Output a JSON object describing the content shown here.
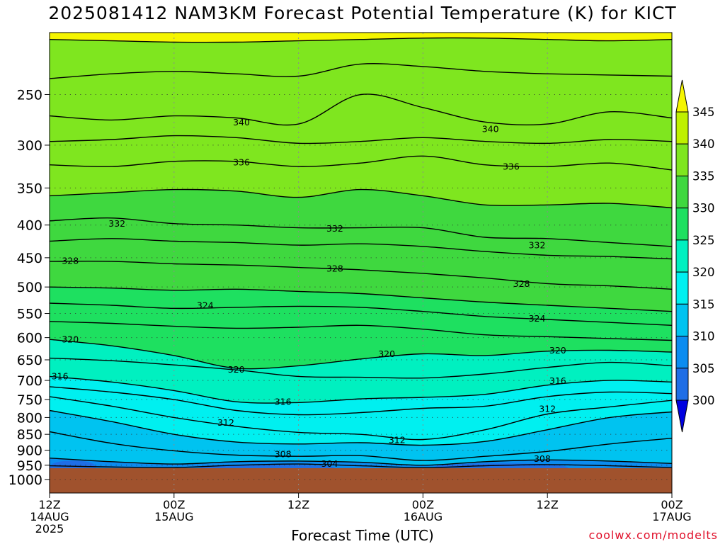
{
  "chart_data": {
    "type": "heatmap",
    "title": "2025081412 NAM3KM Forecast Potential Temperature (K) for KICT",
    "xlabel": "Forecast Time (UTC)",
    "ylabel": "",
    "credit": "coolwx.com/modelts",
    "x_range_hours": [
      0,
      60
    ],
    "x_ticks": [
      {
        "hour": 0,
        "lines": [
          "12Z",
          "14AUG",
          "2025"
        ]
      },
      {
        "hour": 12,
        "lines": [
          "00Z",
          "15AUG"
        ]
      },
      {
        "hour": 24,
        "lines": [
          "12Z"
        ]
      },
      {
        "hour": 36,
        "lines": [
          "00Z",
          "16AUG"
        ]
      },
      {
        "hour": 48,
        "lines": [
          "12Z"
        ]
      },
      {
        "hour": 60,
        "lines": [
          "00Z",
          "17AUG"
        ]
      }
    ],
    "y_axis": {
      "units": "hPa",
      "scale": "log",
      "range": [
        1050,
        200
      ],
      "reversed": true
    },
    "y_ticks": [
      250,
      300,
      350,
      400,
      450,
      500,
      550,
      600,
      650,
      700,
      750,
      800,
      850,
      900,
      950,
      1000
    ],
    "grid": true,
    "surface_pressure_hpa": 960,
    "colorbar": {
      "levels": [
        300,
        305,
        310,
        315,
        320,
        325,
        330,
        335,
        340,
        345
      ],
      "labels": [
        "300",
        "305",
        "310",
        "315",
        "320",
        "325",
        "330",
        "335",
        "340",
        "345"
      ],
      "colors": [
        "#0a3cd8",
        "#1f6ee6",
        "#0b8cf0",
        "#00c3f0",
        "#00f0f0",
        "#00f0c0",
        "#1ee060",
        "#3fd83f",
        "#7fe61f",
        "#bff000",
        "#f5f500"
      ],
      "placement": "right"
    },
    "contour_interval_k": 2,
    "contour_labels": [
      {
        "value": "340",
        "hour": 18.5,
        "p": 276
      },
      {
        "value": "340",
        "hour": 42.5,
        "p": 283
      },
      {
        "value": "336",
        "hour": 18.5,
        "p": 319
      },
      {
        "value": "336",
        "hour": 44.5,
        "p": 324
      },
      {
        "value": "332",
        "hour": 6.5,
        "p": 398
      },
      {
        "value": "332",
        "hour": 27.5,
        "p": 405
      },
      {
        "value": "332",
        "hour": 47.0,
        "p": 430
      },
      {
        "value": "328",
        "hour": 2.0,
        "p": 455
      },
      {
        "value": "328",
        "hour": 27.5,
        "p": 468
      },
      {
        "value": "328",
        "hour": 45.5,
        "p": 494
      },
      {
        "value": "324",
        "hour": 15.0,
        "p": 534
      },
      {
        "value": "324",
        "hour": 47.0,
        "p": 560
      },
      {
        "value": "320",
        "hour": 2.0,
        "p": 604
      },
      {
        "value": "320",
        "hour": 18.0,
        "p": 673
      },
      {
        "value": "320",
        "hour": 32.5,
        "p": 636
      },
      {
        "value": "320",
        "hour": 49.0,
        "p": 628
      },
      {
        "value": "316",
        "hour": 1.0,
        "p": 689
      },
      {
        "value": "316",
        "hour": 22.5,
        "p": 756
      },
      {
        "value": "316",
        "hour": 49.0,
        "p": 701
      },
      {
        "value": "312",
        "hour": 17.0,
        "p": 815
      },
      {
        "value": "312",
        "hour": 33.5,
        "p": 867
      },
      {
        "value": "312",
        "hour": 48.0,
        "p": 775
      },
      {
        "value": "308",
        "hour": 22.5,
        "p": 913
      },
      {
        "value": "308",
        "hour": 47.5,
        "p": 928
      },
      {
        "value": "304",
        "hour": 27.0,
        "p": 944
      }
    ],
    "contours": [
      {
        "value": 344,
        "p": [
          205,
          206,
          207,
          207,
          206,
          205,
          204,
          204,
          205,
          206,
          205
        ]
      },
      {
        "value": 342,
        "p": [
          236,
          232,
          230,
          232,
          234,
          224,
          226,
          230,
          232,
          233,
          234
        ]
      },
      {
        "value": 340,
        "p": [
          270,
          274,
          270,
          272,
          278,
          250,
          262,
          276,
          278,
          266,
          272
        ]
      },
      {
        "value": 338,
        "p": [
          296,
          294,
          290,
          292,
          298,
          296,
          292,
          296,
          298,
          294,
          296
        ]
      },
      {
        "value": 336,
        "p": [
          322,
          324,
          318,
          318,
          324,
          320,
          312,
          322,
          324,
          320,
          328
        ]
      },
      {
        "value": 334,
        "p": [
          360,
          356,
          352,
          354,
          362,
          352,
          360,
          372,
          372,
          370,
          376
        ]
      },
      {
        "value": 332,
        "p": [
          394,
          390,
          398,
          400,
          404,
          404,
          404,
          418,
          420,
          426,
          432
        ]
      },
      {
        "value": 330,
        "p": [
          424,
          420,
          424,
          426,
          430,
          428,
          432,
          440,
          446,
          448,
          452
        ]
      },
      {
        "value": 328,
        "p": [
          456,
          456,
          460,
          462,
          466,
          470,
          476,
          484,
          494,
          498,
          504
        ]
      },
      {
        "value": 326,
        "p": [
          500,
          502,
          506,
          504,
          508,
          512,
          520,
          528,
          534,
          540,
          546
        ]
      },
      {
        "value": 324,
        "p": [
          530,
          534,
          540,
          538,
          536,
          538,
          546,
          556,
          562,
          568,
          574
        ]
      },
      {
        "value": 322,
        "p": [
          566,
          570,
          576,
          580,
          578,
          574,
          582,
          594,
          598,
          602,
          606
        ]
      },
      {
        "value": 320,
        "p": [
          604,
          618,
          640,
          670,
          664,
          648,
          636,
          640,
          630,
          628,
          632
        ]
      },
      {
        "value": 318,
        "p": [
          646,
          652,
          662,
          674,
          690,
          692,
          694,
          684,
          668,
          656,
          664
        ]
      },
      {
        "value": 316,
        "p": [
          690,
          704,
          726,
          756,
          758,
          748,
          744,
          736,
          712,
          700,
          704
        ]
      },
      {
        "value": 314,
        "p": [
          716,
          730,
          750,
          780,
          792,
          786,
          774,
          768,
          742,
          730,
          734
        ]
      },
      {
        "value": 312,
        "p": [
          742,
          768,
          800,
          826,
          844,
          850,
          866,
          836,
          790,
          770,
          752
        ]
      },
      {
        "value": 310,
        "p": [
          780,
          812,
          850,
          874,
          880,
          876,
          884,
          872,
          836,
          800,
          784
        ]
      },
      {
        "value": 308,
        "p": [
          842,
          878,
          902,
          916,
          920,
          918,
          934,
          920,
          904,
          880,
          862
        ]
      },
      {
        "value": 306,
        "p": [
          926,
          938,
          946,
          938,
          936,
          940,
          950,
          938,
          932,
          936,
          944
        ]
      },
      {
        "value": 304,
        "p": [
          952,
          956,
          958,
          950,
          946,
          952,
          958,
          952,
          948,
          952,
          958
        ]
      }
    ],
    "contour_hours": [
      0,
      6,
      12,
      18,
      24,
      30,
      36,
      42,
      48,
      54,
      60
    ]
  }
}
